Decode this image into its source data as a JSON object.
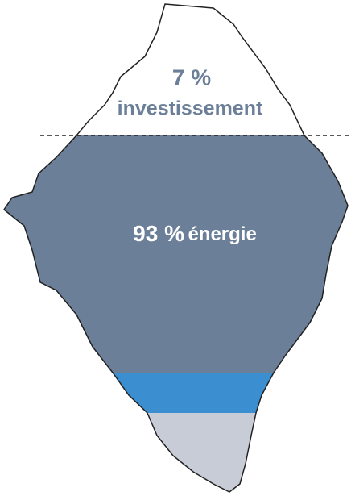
{
  "above": {
    "share": "7 %",
    "label": "investissement"
  },
  "below": {
    "share": "93 %",
    "label": "énergie"
  }
}
